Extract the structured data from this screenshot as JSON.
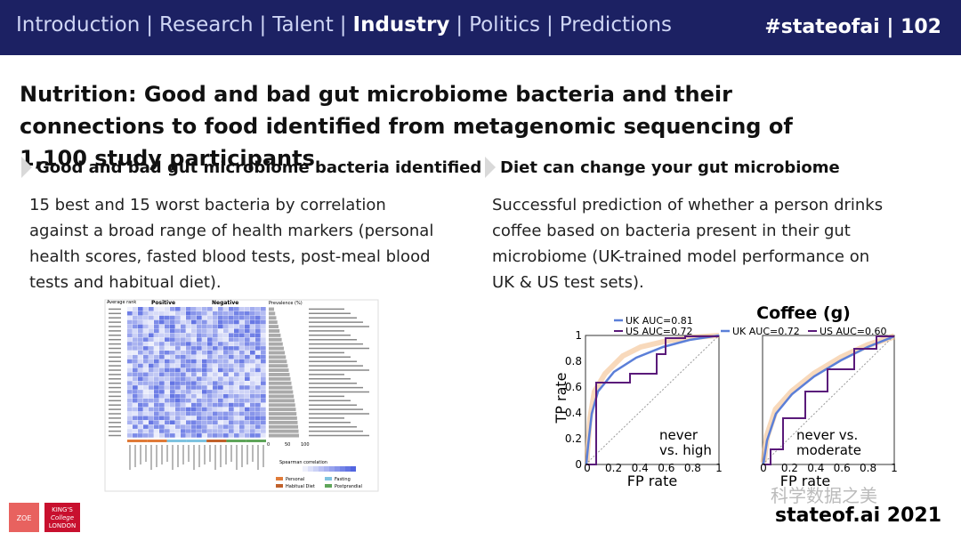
{
  "header": {
    "nav": [
      "Introduction",
      "Research",
      "Talent",
      "Industry",
      "Politics",
      "Predictions"
    ],
    "separator": "|",
    "tag": "#stateofai | 102"
  },
  "title": "Nutrition: Good and bad gut microbiome bacteria and their connections to food identified from metagenomic sequencing of 1,100 study participants",
  "columns": [
    {
      "heading": "Good and bad gut microbiome bacteria identified",
      "body": "15 best and 15 worst bacteria by correlation against a broad range of health markers (personal health scores, fasted blood tests, post-meal blood tests and habitual diet)."
    },
    {
      "heading": "Diet can change your gut microbiome",
      "body": "Successful prediction of whether a person drinks coffee based on bacteria present in their gut microbiome (UK-trained model performance on UK & US test sets)."
    }
  ],
  "heatmap": {
    "rank_label": "Average rank",
    "positive": "Positive",
    "negative": "Negative",
    "prevalence": "Prevalence (%)",
    "scale_label": "Spearman correlation",
    "prevalence_ticks": [
      "0",
      "50",
      "100"
    ],
    "categories": [
      "Personal",
      "Fasting",
      "Habitual Diet",
      "Postprandial"
    ]
  },
  "roc": {
    "title": "Coffee (g)",
    "y_label": "TP rate",
    "x_label": "FP rate",
    "yticks": [
      "1",
      "0.8",
      "0.6",
      "0.4",
      "0.2",
      "0"
    ],
    "xticks": [
      "0",
      "0.2",
      "0.4",
      "0.6",
      "0.8",
      "1"
    ],
    "panels": [
      {
        "legend": [
          "UK AUC=0.81",
          "US AUC=0.72"
        ],
        "note": [
          "never",
          "vs. high"
        ]
      },
      {
        "legend": [
          "UK AUC=0.72",
          "US AUC=0.60"
        ],
        "note": [
          "never vs.",
          "moderate"
        ]
      }
    ]
  },
  "footer": {
    "zoe": "ZOE",
    "kings": [
      "KING'S",
      "College",
      "LONDON"
    ],
    "watermark": "科学数据之美",
    "brand": "stateof.ai 2021"
  }
}
